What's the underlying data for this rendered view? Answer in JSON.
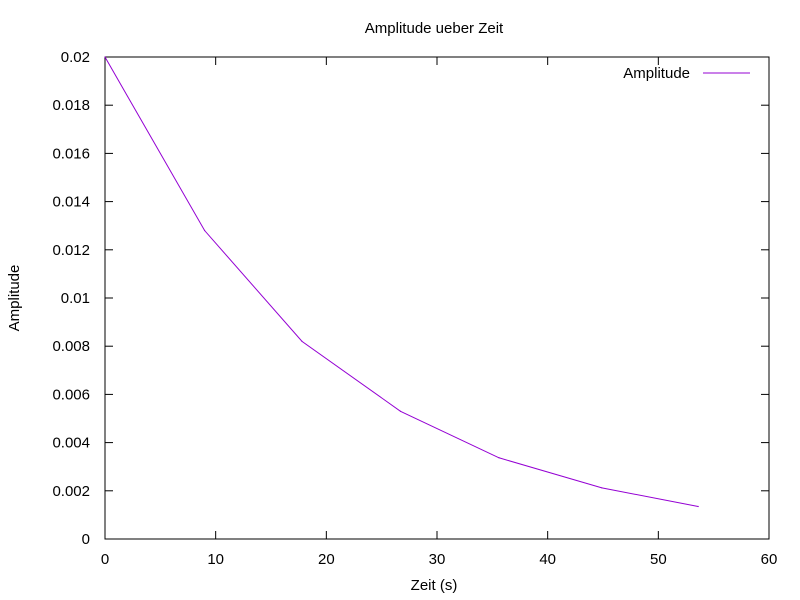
{
  "chart_data": {
    "type": "line",
    "title": "Amplitude ueber Zeit",
    "xlabel": "Zeit (s)",
    "ylabel": "Amplitude",
    "xlim": [
      0,
      60
    ],
    "ylim": [
      0,
      0.02
    ],
    "xticks": [
      "0",
      "10",
      "20",
      "30",
      "40",
      "50",
      "60"
    ],
    "yticks": [
      "0",
      "0.002",
      "0.004",
      "0.006",
      "0.008",
      "0.01",
      "0.012",
      "0.014",
      "0.016",
      "0.018",
      "0.02"
    ],
    "grid": false,
    "legend_position": "top-right",
    "series": [
      {
        "name": "Amplitude",
        "color": "#9400d3",
        "x": [
          0,
          9,
          17.8,
          26.7,
          35.6,
          44.9,
          53.6
        ],
        "y": [
          0.02,
          0.0128,
          0.0082,
          0.0053,
          0.00337,
          0.00212,
          0.00135
        ]
      }
    ]
  }
}
